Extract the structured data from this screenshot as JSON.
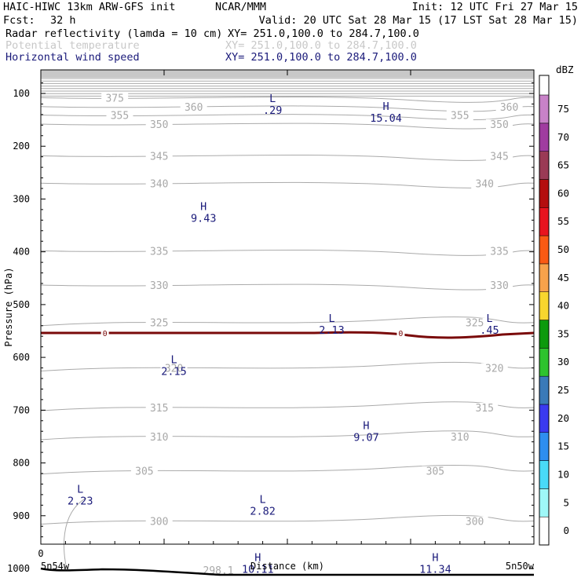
{
  "header": {
    "model": "HAIC-HIWC 13km ARW-GFS init",
    "org": "NCAR/MMM",
    "init": "Init: 12 UTC Fri 27 Mar 15",
    "fcst_label": "Fcst:",
    "fcst_value": "32 h",
    "valid": "Valid: 20 UTC Sat 28 Mar 15 (17 LST Sat 28 Mar 15)",
    "fields": [
      {
        "label": "Radar reflectivity (lamda = 10 cm)",
        "xy": "XY= 251.0,100.0 to 284.7,100.0",
        "color": "#000000"
      },
      {
        "label": "Potential temperature",
        "xy": "XY= 251.0,100.0 to 284.7,100.0",
        "color": "#c8c8c8"
      },
      {
        "label": "Horizontal wind speed",
        "xy": "XY= 251.0,100.0 to 284.7,100.0",
        "color": "#1a1a7a"
      }
    ]
  },
  "chart_data": {
    "type": "cross-section",
    "ylabel": "Pressure (hPa)",
    "xlabel": "Distance (km)",
    "x_left_label": "5n54w",
    "x_right_label": "5n50w",
    "x_zero_label": "0",
    "y_ticks": [
      100,
      200,
      300,
      400,
      500,
      600,
      700,
      800,
      900,
      1000
    ],
    "colorbar": {
      "unit": "dBZ",
      "levels": [
        0,
        5,
        10,
        15,
        20,
        25,
        30,
        35,
        40,
        45,
        50,
        55,
        60,
        65,
        70,
        75
      ],
      "colors": [
        "#ffffff",
        "#9ff8f8",
        "#49daf8",
        "#2e8ef0",
        "#3a3af0",
        "#3a7ab8",
        "#2ec32e",
        "#0c9a0c",
        "#f8d62e",
        "#f7a24b",
        "#fa5a14",
        "#e8141e",
        "#b40e0e",
        "#9a3a55",
        "#a03ca0",
        "#c882c8"
      ]
    },
    "theta_contours": [
      {
        "value": 375,
        "p": 108
      },
      {
        "value": 360,
        "p": 125
      },
      {
        "value": 355,
        "p": 141
      },
      {
        "value": 350,
        "p": 158
      },
      {
        "value": 345,
        "p": 218
      },
      {
        "value": 340,
        "p": 270
      },
      {
        "value": 335,
        "p": 398
      },
      {
        "value": 330,
        "p": 463
      },
      {
        "value": 325,
        "p": 534
      },
      {
        "value": 320,
        "p": 620
      },
      {
        "value": 315,
        "p": 695
      },
      {
        "value": 310,
        "p": 750
      },
      {
        "value": 305,
        "p": 815
      },
      {
        "value": 300,
        "p": 910
      },
      {
        "value": 298.1,
        "p": 1000
      }
    ],
    "wind_extrema": [
      {
        "type": "L",
        "value": ".29",
        "x": 0.47,
        "p": 125
      },
      {
        "type": "H",
        "value": "15.04",
        "x": 0.7,
        "p": 140
      },
      {
        "type": "H",
        "value": "9.43",
        "x": 0.33,
        "p": 330
      },
      {
        "type": "L",
        "value": "2.13",
        "x": 0.59,
        "p": 542
      },
      {
        "type": "L",
        "value": ".45",
        "x": 0.91,
        "p": 542
      },
      {
        "type": "L",
        "value": "2.15",
        "x": 0.27,
        "p": 620
      },
      {
        "type": "H",
        "value": "9.07",
        "x": 0.66,
        "p": 745
      },
      {
        "type": "L",
        "value": "2.23",
        "x": 0.08,
        "p": 865
      },
      {
        "type": "L",
        "value": "2.82",
        "x": 0.45,
        "p": 885
      },
      {
        "type": "H",
        "value": "10.11",
        "x": 0.44,
        "p": 995
      },
      {
        "type": "H",
        "value": "11.34",
        "x": 0.8,
        "p": 995
      }
    ],
    "freezing_level": {
      "label": "0",
      "p": 553
    },
    "terrain_p": 1000
  }
}
